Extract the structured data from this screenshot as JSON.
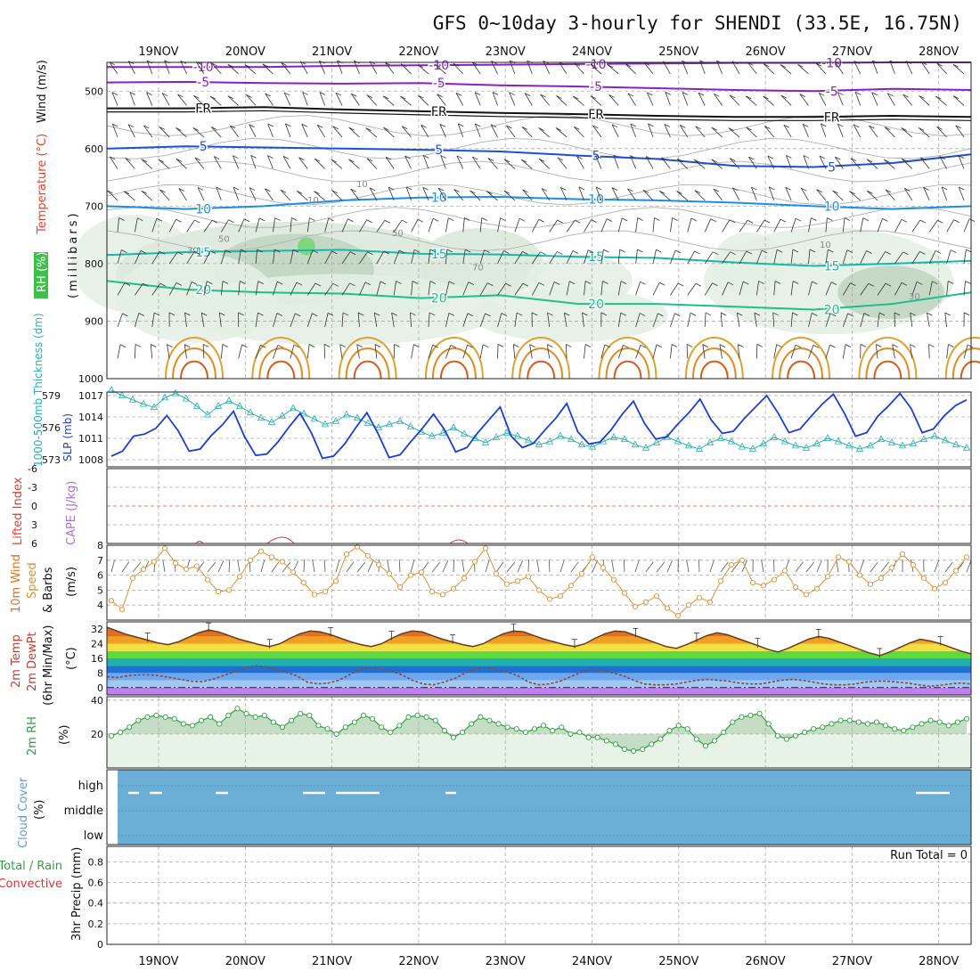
{
  "title": "GFS 0~10day 3-hourly for SHENDI (33.5E, 16.75N)",
  "chart_data": {
    "type": "line",
    "dates": [
      "19NOV",
      "20NOV",
      "21NOV",
      "22NOV",
      "23NOV",
      "24NOV",
      "25NOV",
      "26NOV",
      "27NOV",
      "28NOV"
    ],
    "panels": {
      "upper_air": {
        "ylabel_parts": [
          "RH (%)",
          "Temperature (°C)",
          "Wind (m/s)",
          "(millibars)"
        ],
        "y_ticks": [
          500,
          600,
          700,
          800,
          900,
          1000
        ],
        "ylim": [
          450,
          1000
        ],
        "isotherms": [
          {
            "label": "-10",
            "color": "#8a1fc4",
            "p": [
              458,
              458,
              458,
              456,
              455,
              454,
              453,
              452,
              451,
              451,
              450,
              450
            ]
          },
          {
            "label": "-5",
            "color": "#8a1fc4",
            "p": [
              485,
              484,
              486,
              487,
              486,
              490,
              492,
              495,
              498,
              500,
              496,
              498
            ]
          },
          {
            "label": "FR",
            "color": "#111111",
            "p": [
              530,
              530,
              528,
              532,
              535,
              538,
              540,
              543,
              545,
              545,
              543,
              545
            ]
          },
          {
            "label": "5",
            "color": "#1d4fd6",
            "p": [
              600,
              596,
              598,
              600,
              602,
              605,
              612,
              618,
              630,
              632,
              625,
              610
            ]
          },
          {
            "label": "10",
            "color": "#1e8fe0",
            "p": [
              700,
              705,
              700,
              690,
              685,
              684,
              688,
              690,
              694,
              700,
              705,
              700
            ]
          },
          {
            "label": "15",
            "color": "#18b8a8",
            "p": [
              785,
              780,
              778,
              776,
              783,
              784,
              788,
              790,
              798,
              804,
              800,
              795
            ]
          },
          {
            "label": "20",
            "color": "#1ec08a",
            "p": [
              830,
              845,
              850,
              852,
              860,
              855,
              870,
              870,
              875,
              880,
              870,
              850
            ]
          }
        ],
        "rh_labels": [
          "30",
          "50",
          "50",
          "70",
          "10",
          "10",
          "10",
          "30"
        ]
      },
      "thickness_slp": {
        "left_label": "1000-500mb Thickness (dm)",
        "right_label": "SLP (mb)",
        "left_ticks": [
          573,
          576,
          579
        ],
        "right_ticks": [
          1008,
          1011,
          1014,
          1017
        ],
        "ylim_slp": [
          1007,
          1017.5
        ],
        "thickness": [
          579.5,
          579,
          578.6,
          578.2,
          577.9,
          578.8,
          579.2,
          578.7,
          578,
          577.2,
          578,
          578.5,
          578,
          577.4,
          576.9,
          576.5,
          577.1,
          577.8,
          577.3,
          576.8,
          576.3,
          576.6,
          577.2,
          576.9,
          576.4,
          576,
          576.3,
          576.6,
          576.1,
          575.6,
          575.2,
          575.5,
          576,
          575.4,
          575,
          574.6,
          575.1,
          575.5,
          575.2,
          574.8,
          574.4,
          574.7,
          575.2,
          574.9,
          574.4,
          574.2,
          574.7,
          575.1,
          574.9,
          574.4,
          574.1,
          574.6,
          575.1,
          574.7,
          574.3,
          574.0,
          574.6,
          575.0,
          574.7,
          574.2,
          574.0,
          574.5,
          575.1,
          574.7,
          574.3,
          574.1,
          574.5,
          575.0,
          574.7,
          574.3,
          574.0,
          574.3,
          574.9,
          574.6,
          574.3,
          574.5,
          574.9,
          575.2,
          574.8,
          574.4,
          574.1
        ],
        "slp": [
          1008.5,
          1009.2,
          1011.3,
          1011.6,
          1012.4,
          1014.2,
          1012.1,
          1009.2,
          1009.5,
          1011.4,
          1012.9,
          1014.8,
          1011.2,
          1008.6,
          1008.8,
          1010.5,
          1012.6,
          1014.5,
          1011.8,
          1008.2,
          1008.5,
          1010.2,
          1012.5,
          1014.6,
          1011.7,
          1008.3,
          1008.7,
          1010.6,
          1012.4,
          1014.4,
          1012.2,
          1009.1,
          1009.7,
          1011.8,
          1013.6,
          1015.4,
          1011.3,
          1009.7,
          1010.3,
          1012.1,
          1013.8,
          1015.9,
          1011.9,
          1010.2,
          1010.5,
          1012.2,
          1014.4,
          1016.2,
          1013.1,
          1010.9,
          1011.2,
          1013,
          1014.6,
          1016.5,
          1013.6,
          1011.7,
          1012,
          1013.8,
          1015.4,
          1017,
          1014.6,
          1011.8,
          1012.3,
          1014.1,
          1015.8,
          1017.2,
          1014.5,
          1011.3,
          1011.8,
          1014.1,
          1015.6,
          1017.3,
          1015.2,
          1011.8,
          1012.3,
          1014.2,
          1015.6,
          1016.4
        ]
      },
      "stability": {
        "left_label": "Lifted Index",
        "right_label": "CAPE (J/kg)",
        "ticks": [
          -6,
          -3,
          0,
          3,
          6
        ],
        "ylim": [
          -6,
          6
        ]
      },
      "wind10m": {
        "label": "10m Wind Speed & Barbs (m/s)",
        "ticks": [
          4,
          5,
          6,
          7,
          8
        ],
        "ylim": [
          3,
          8
        ],
        "values": [
          4.3,
          3.7,
          5.8,
          6.4,
          6.9,
          7.8,
          6.8,
          6.4,
          6.6,
          5.7,
          4.9,
          5.0,
          5.9,
          7.0,
          7.6,
          7.2,
          6.9,
          6.2,
          5.5,
          4.7,
          4.9,
          5.6,
          7.4,
          7.9,
          7.3,
          6.7,
          6.1,
          5.2,
          6.0,
          6.2,
          4.9,
          4.7,
          5.1,
          5.8,
          6.9,
          7.8,
          6.1,
          5.4,
          5.6,
          5.9,
          5.0,
          4.4,
          4.6,
          5.3,
          6.1,
          7.2,
          6.5,
          5.7,
          4.8,
          3.9,
          4.2,
          4.6,
          3.8,
          3.3,
          4.0,
          4.5,
          4.2,
          5.6,
          6.7,
          7.0,
          5.5,
          5.3,
          5.7,
          6.3,
          5.2,
          4.7,
          5.1,
          5.9,
          7.2,
          6.9,
          6.0,
          5.4,
          5.8,
          6.5,
          7.4,
          6.7,
          5.8,
          5.1,
          5.5,
          6.3,
          7.2
        ]
      },
      "temp2m": {
        "label": "2m Temp 2m DewPt (6hr Min/Max) (°C)",
        "ticks": [
          0,
          8,
          16,
          24,
          32
        ],
        "ylim": [
          -4,
          36
        ],
        "temp": [
          33,
          31,
          29,
          27.5,
          26,
          24.5,
          23.5,
          25,
          27.5,
          30,
          31.5,
          30.5,
          28.5,
          26.5,
          25,
          23.5,
          22.5,
          24,
          27,
          29.5,
          31,
          30.5,
          29,
          27,
          25,
          23.5,
          22.5,
          24,
          27,
          29.5,
          31,
          30.5,
          28.5,
          26.5,
          25,
          23.5,
          22.5,
          24,
          27,
          29.5,
          31,
          30.5,
          28.5,
          26.5,
          25,
          23.5,
          22.5,
          24,
          27,
          29.5,
          31,
          30.5,
          28.5,
          26.5,
          24.5,
          22.5,
          21.5,
          23.5,
          26,
          28.5,
          30,
          29,
          27,
          25,
          23,
          21,
          19.5,
          21.5,
          24,
          26.5,
          28,
          27,
          25,
          23,
          21,
          19,
          17.5,
          19.5,
          22,
          24.5,
          26.5,
          25.5,
          24,
          22,
          20,
          18.5
        ],
        "dewpt": [
          6,
          5.5,
          6.5,
          7,
          7,
          6.5,
          5.5,
          4.5,
          3.5,
          3.2,
          4.5,
          6.5,
          8.5,
          10.5,
          12,
          11.5,
          10,
          8.5,
          6.5,
          3,
          2,
          2.5,
          4,
          7,
          10,
          11,
          10.5,
          9,
          7,
          4,
          2,
          1.5,
          3,
          5,
          8,
          10.5,
          11,
          10,
          8.5,
          6.5,
          3,
          1.5,
          2,
          3.5,
          6,
          8.5,
          10,
          9.5,
          8,
          6.5,
          4,
          2,
          1.5,
          1.5,
          2,
          3,
          4,
          4.5,
          4,
          3.5,
          2.5,
          2,
          2,
          3,
          4,
          4.5,
          4,
          3,
          2,
          1.5,
          1.5,
          2,
          3,
          3.5,
          3.5,
          3,
          2.5,
          1.5,
          0.8,
          1.2,
          2,
          2.5,
          2
        ]
      },
      "rh2m": {
        "label": "2m RH (%)",
        "ticks": [
          20,
          40
        ],
        "ylim": [
          0,
          42
        ],
        "values": [
          19,
          21,
          24,
          28,
          30,
          31,
          30,
          29,
          26,
          25,
          28,
          30,
          26,
          31,
          35,
          32,
          30,
          31,
          27,
          24,
          28,
          32,
          31,
          25,
          23,
          20,
          24,
          27,
          31,
          29,
          24,
          21,
          25,
          30,
          31,
          30,
          28,
          22,
          18,
          21,
          26,
          30,
          28,
          26,
          24,
          23,
          21,
          23,
          25,
          22,
          24,
          20,
          21,
          18,
          18,
          16,
          14,
          11,
          10,
          11,
          14,
          17,
          22,
          25,
          23,
          17,
          13,
          16,
          21,
          27,
          30,
          31,
          32,
          26,
          19,
          17,
          19,
          21,
          23,
          24,
          26,
          28,
          28,
          27,
          26,
          27,
          25,
          23,
          22,
          24,
          26,
          28,
          27,
          25,
          27,
          29
        ]
      },
      "cloud_cover": {
        "label": "Cloud Cover (%)",
        "levels": [
          "high",
          "middle",
          "low"
        ]
      },
      "precip": {
        "label": "3hr Precip (mm)",
        "legend_total": "Total / Rain",
        "legend_conv": "Convective",
        "ticks": [
          0,
          0.2,
          0.4,
          0.6,
          0.8
        ],
        "ylim": [
          0,
          0.95
        ],
        "run_total": "Run Total = 0"
      }
    }
  }
}
